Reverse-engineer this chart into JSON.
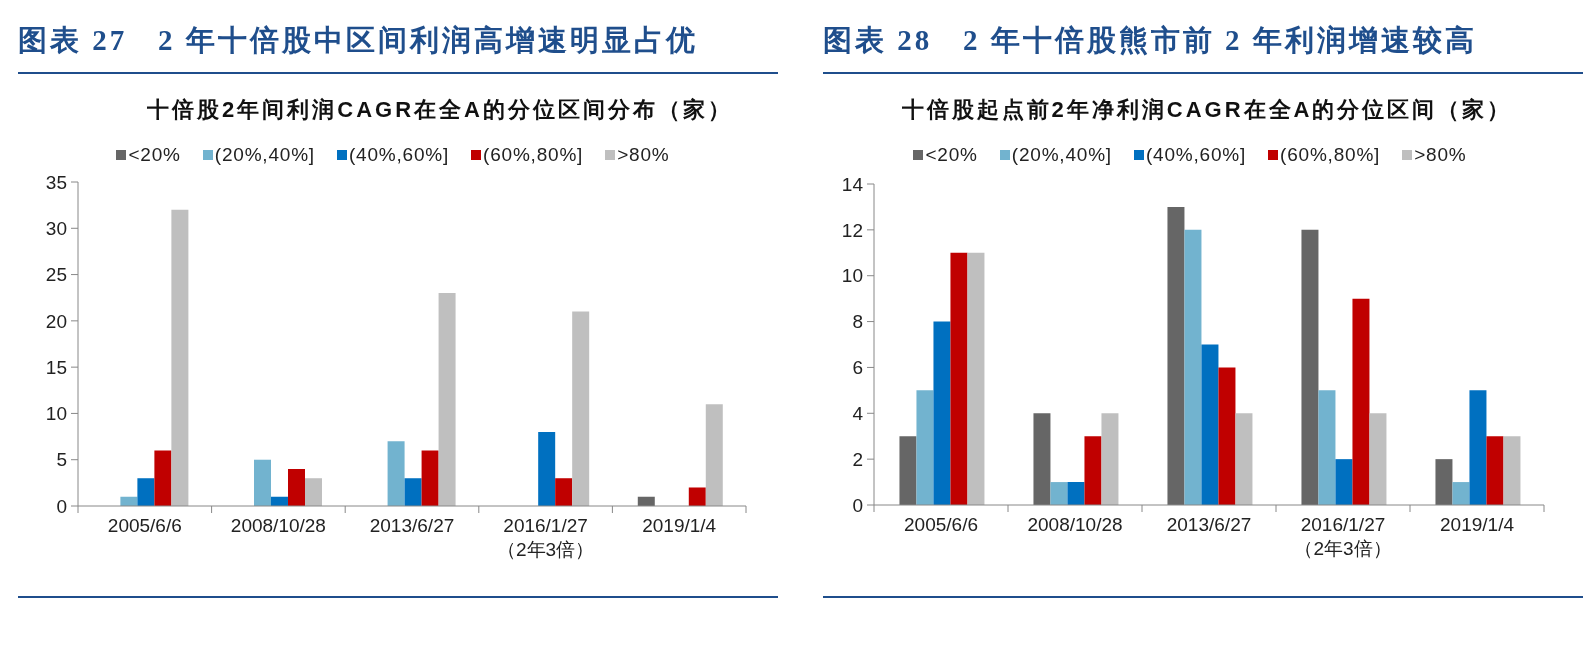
{
  "chart_data": [
    {
      "type": "bar",
      "title": "图表 27   2 年十倍股中区间利润高增速明显占优",
      "subtitle": "十倍股2年间利润CAGR在全A的分位区间分布（家）",
      "categories": [
        "2005/6/6",
        "2008/10/28",
        "2013/6/27",
        "2016/1/27\n（2年3倍）",
        "2019/1/4"
      ],
      "series": [
        {
          "name": "<20%",
          "color": "#666666",
          "values": [
            0,
            0,
            0,
            0,
            1
          ]
        },
        {
          "name": "(20%,40%]",
          "color": "#72b3cf",
          "values": [
            1,
            5,
            7,
            0,
            0
          ]
        },
        {
          "name": "(40%,60%]",
          "color": "#0070c0",
          "values": [
            3,
            1,
            3,
            8,
            0
          ]
        },
        {
          "name": "(60%,80%]",
          "color": "#c00000",
          "values": [
            6,
            4,
            6,
            3,
            2
          ]
        },
        {
          "name": ">80%",
          "color": "#bfbfbf",
          "values": [
            32,
            3,
            23,
            21,
            11
          ]
        }
      ],
      "ylim": [
        0,
        35
      ],
      "yticks": [
        0,
        5,
        10,
        15,
        20,
        25,
        30,
        35
      ],
      "legend": "top"
    },
    {
      "type": "bar",
      "title": "图表 28   2 年十倍股熊市前 2 年利润增速较高",
      "subtitle": "十倍股起点前2年净利润CAGR在全A的分位区间（家）",
      "categories": [
        "2005/6/6",
        "2008/10/28",
        "2013/6/27",
        "2016/1/27\n（2年3倍）",
        "2019/1/4"
      ],
      "series": [
        {
          "name": "<20%",
          "color": "#666666",
          "values": [
            3,
            4,
            13,
            12,
            2
          ]
        },
        {
          "name": "(20%,40%]",
          "color": "#72b3cf",
          "values": [
            5,
            1,
            12,
            5,
            1
          ]
        },
        {
          "name": "(40%,60%]",
          "color": "#0070c0",
          "values": [
            8,
            1,
            7,
            2,
            5
          ]
        },
        {
          "name": "(60%,80%]",
          "color": "#c00000",
          "values": [
            11,
            3,
            6,
            9,
            3
          ]
        },
        {
          "name": ">80%",
          "color": "#bfbfbf",
          "values": [
            11,
            4,
            4,
            4,
            3
          ]
        }
      ],
      "ylim": [
        0,
        14
      ],
      "yticks": [
        0,
        2,
        4,
        6,
        8,
        10,
        12,
        14
      ],
      "legend": "top"
    }
  ]
}
